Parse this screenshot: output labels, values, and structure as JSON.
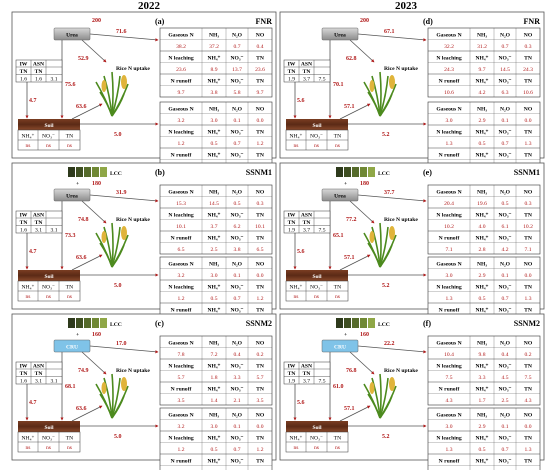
{
  "years": [
    "2022",
    "2023"
  ],
  "legend": {
    "lcc": "LCC",
    "plus": "+"
  },
  "labels": {
    "gaseous": "Gaseous N",
    "leaching": "N leaching",
    "runoff": "N runoff",
    "nh3": "NH₃",
    "n2o": "N₂O",
    "no": "NO",
    "nh4": "NH₄⁺",
    "no3": "NO₃⁻",
    "tn": "TN",
    "iw": "IW",
    "asn": "ASN",
    "soil": "Soil",
    "rice": "Rice N uptake",
    "ns": "ns"
  },
  "panels": [
    {
      "letter": "(a)",
      "title": "FNR",
      "fert": "Urea",
      "lcc": false,
      "top": "200",
      "arrowRight": "71.6",
      "arrowPlant": "52.9",
      "arrowSoil": "75.6",
      "arrowLeft": "4.7",
      "arrowSoilPlant": "63.6",
      "arrowSoilRight": "5.0",
      "iw": [
        "1.6",
        "1.6",
        "3.1"
      ],
      "ut": {
        "gas": [
          "38.2",
          "37.2",
          "0.7",
          "0.4"
        ],
        "leach": [
          "23.6",
          "8.9",
          "13.7",
          "23.6"
        ],
        "runoff": [
          "9.7",
          "3.8",
          "5.8",
          "9.7"
        ]
      },
      "ub": {
        "gas": [
          "3.2",
          "3.0",
          "0.1",
          "0.0"
        ],
        "leach": [
          "1.2",
          "0.5",
          "0.7",
          "1.2"
        ],
        "runoff": [
          "0.6",
          "0.2",
          "0.3",
          "0.6"
        ]
      }
    },
    {
      "letter": "(d)",
      "title": "FNR",
      "fert": "Urea",
      "lcc": false,
      "top": "200",
      "arrowRight": "67.1",
      "arrowPlant": "62.8",
      "arrowSoil": "70.1",
      "arrowLeft": "5.6",
      "arrowSoilPlant": "57.1",
      "arrowSoilRight": "5.2",
      "iw": [
        "1.9",
        "3.7",
        "7.5"
      ],
      "ut": {
        "gas": [
          "32.2",
          "31.2",
          "0.7",
          "0.3"
        ],
        "leach": [
          "24.3",
          "9.7",
          "14.5",
          "24.3"
        ],
        "runoff": [
          "10.6",
          "4.2",
          "6.3",
          "10.6"
        ]
      },
      "ub": {
        "gas": [
          "3.0",
          "2.9",
          "0.1",
          "0.0"
        ],
        "leach": [
          "1.3",
          "0.5",
          "0.7",
          "1.3"
        ],
        "runoff": [
          "0.9",
          "0.3",
          "0.5",
          "0.9"
        ]
      }
    },
    {
      "letter": "(b)",
      "title": "SSNM1",
      "fert": "Urea",
      "lcc": true,
      "top": "180",
      "arrowRight": "31.9",
      "arrowPlant": "74.8",
      "arrowSoil": "73.3",
      "arrowLeft": "4.7",
      "arrowSoilPlant": "63.6",
      "arrowSoilRight": "5.0",
      "iw": [
        "1.6",
        "3.1",
        "3.1"
      ],
      "ut": {
        "gas": [
          "15.3",
          "14.5",
          "0.5",
          "0.3"
        ],
        "leach": [
          "10.1",
          "3.7",
          "6.2",
          "10.1"
        ],
        "runoff": [
          "6.5",
          "2.5",
          "3.8",
          "6.5"
        ]
      },
      "ub": {
        "gas": [
          "3.2",
          "3.0",
          "0.1",
          "0.0"
        ],
        "leach": [
          "1.2",
          "0.5",
          "0.7",
          "1.2"
        ],
        "runoff": [
          "0.6",
          "0.2",
          "0.3",
          "0.6"
        ]
      }
    },
    {
      "letter": "(e)",
      "title": "SSNM1",
      "fert": "Urea",
      "lcc": true,
      "top": "180",
      "arrowRight": "37.7",
      "arrowPlant": "77.2",
      "arrowSoil": "65.1",
      "arrowLeft": "5.6",
      "arrowSoilPlant": "57.1",
      "arrowSoilRight": "5.2",
      "iw": [
        "1.9",
        "3.7",
        "7.5"
      ],
      "ut": {
        "gas": [
          "20.4",
          "19.6",
          "0.5",
          "0.3"
        ],
        "leach": [
          "10.2",
          "4.0",
          "6.1",
          "10.2"
        ],
        "runoff": [
          "7.1",
          "2.8",
          "4.2",
          "7.1"
        ]
      },
      "ub": {
        "gas": [
          "3.0",
          "2.9",
          "0.1",
          "0.0"
        ],
        "leach": [
          "1.3",
          "0.5",
          "0.7",
          "1.3"
        ],
        "runoff": [
          "0.9",
          "0.3",
          "0.5",
          "0.9"
        ]
      }
    },
    {
      "letter": "(c)",
      "title": "SSNM2",
      "fert": "CRU",
      "lcc": true,
      "top": "160",
      "arrowRight": "17.0",
      "arrowPlant": "74.9",
      "arrowSoil": "68.1",
      "arrowLeft": "4.7",
      "arrowSoilPlant": "63.6",
      "arrowSoilRight": "5.0",
      "iw": [
        "1.6",
        "3.1",
        "3.1"
      ],
      "ut": {
        "gas": [
          "7.8",
          "7.2",
          "0.4",
          "0.2"
        ],
        "leach": [
          "5.7",
          "1.8",
          "3.3",
          "5.7"
        ],
        "runoff": [
          "3.5",
          "1.4",
          "2.1",
          "3.5"
        ]
      },
      "ub": {
        "gas": [
          "3.2",
          "3.0",
          "0.1",
          "0.0"
        ],
        "leach": [
          "1.2",
          "0.5",
          "0.7",
          "1.2"
        ],
        "runoff": [
          "0.6",
          "0.2",
          "0.3",
          "0.6"
        ]
      }
    },
    {
      "letter": "(f)",
      "title": "SSNM2",
      "fert": "CRU",
      "lcc": true,
      "top": "160",
      "arrowRight": "22.2",
      "arrowPlant": "76.8",
      "arrowSoil": "61.0",
      "arrowLeft": "5.6",
      "arrowSoilPlant": "57.1",
      "arrowSoilRight": "5.2",
      "iw": [
        "1.9",
        "3.7",
        "7.5"
      ],
      "ut": {
        "gas": [
          "10.4",
          "9.8",
          "0.4",
          "0.2"
        ],
        "leach": [
          "7.5",
          "3.3",
          "4.5",
          "7.5"
        ],
        "runoff": [
          "4.3",
          "1.7",
          "2.5",
          "4.3"
        ]
      },
      "ub": {
        "gas": [
          "3.0",
          "2.9",
          "0.1",
          "0.0"
        ],
        "leach": [
          "1.3",
          "0.5",
          "0.7",
          "1.3"
        ],
        "runoff": [
          "0.9",
          "0.3",
          "0.5",
          "0.9"
        ]
      }
    }
  ]
}
